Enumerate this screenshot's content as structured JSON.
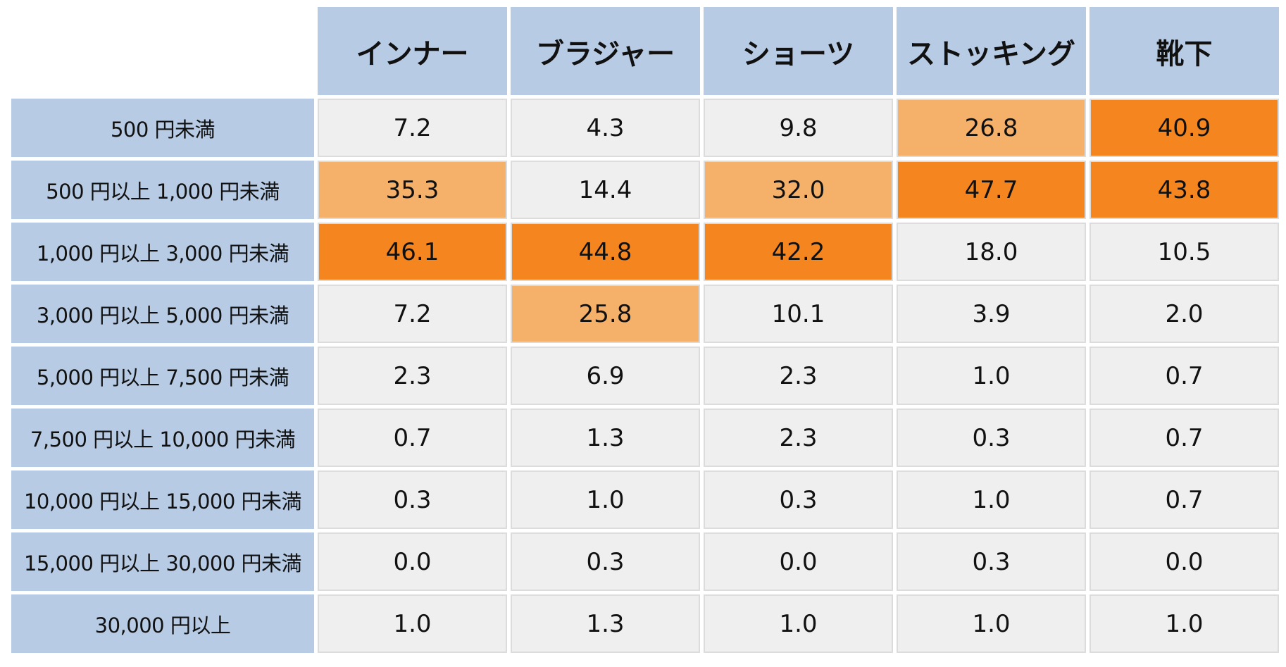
{
  "colors": {
    "header_bg": "#b7cbe4",
    "cell_bg": "#efefef",
    "cell_border": "#dcdcdc",
    "highlight_light": "#f5b16a",
    "highlight_strong": "#f5861f"
  },
  "chart_data": {
    "type": "table",
    "columns": [
      "インナー",
      "ブラジャー",
      "ショーツ",
      "ストッキング",
      "靴下"
    ],
    "rows": [
      "500 円未満",
      "500 円以上 1,000 円未満",
      "1,000 円以上 3,000 円未満",
      "3,000 円以上 5,000 円未満",
      "5,000 円以上 7,500 円未満",
      "7,500 円以上 10,000 円未満",
      "10,000 円以上 15,000 円未満",
      "15,000 円以上 30,000 円未満",
      "30,000 円以上"
    ],
    "values": [
      [
        "7.2",
        "4.3",
        "9.8",
        "26.8",
        "40.9"
      ],
      [
        "35.3",
        "14.4",
        "32.0",
        "47.7",
        "43.8"
      ],
      [
        "46.1",
        "44.8",
        "42.2",
        "18.0",
        "10.5"
      ],
      [
        "7.2",
        "25.8",
        "10.1",
        "3.9",
        "2.0"
      ],
      [
        "2.3",
        "6.9",
        "2.3",
        "1.0",
        "0.7"
      ],
      [
        "0.7",
        "1.3",
        "2.3",
        "0.3",
        "0.7"
      ],
      [
        "0.3",
        "1.0",
        "0.3",
        "1.0",
        "0.7"
      ],
      [
        "0.0",
        "0.3",
        "0.0",
        "0.3",
        "0.0"
      ],
      [
        "1.0",
        "1.3",
        "1.0",
        "1.0",
        "1.0"
      ]
    ],
    "highlight": [
      [
        "none",
        "none",
        "none",
        "light",
        "strong"
      ],
      [
        "light",
        "none",
        "light",
        "strong",
        "strong"
      ],
      [
        "strong",
        "strong",
        "strong",
        "none",
        "none"
      ],
      [
        "none",
        "light",
        "none",
        "none",
        "none"
      ],
      [
        "none",
        "none",
        "none",
        "none",
        "none"
      ],
      [
        "none",
        "none",
        "none",
        "none",
        "none"
      ],
      [
        "none",
        "none",
        "none",
        "none",
        "none"
      ],
      [
        "none",
        "none",
        "none",
        "none",
        "none"
      ],
      [
        "none",
        "none",
        "none",
        "none",
        "none"
      ]
    ]
  }
}
